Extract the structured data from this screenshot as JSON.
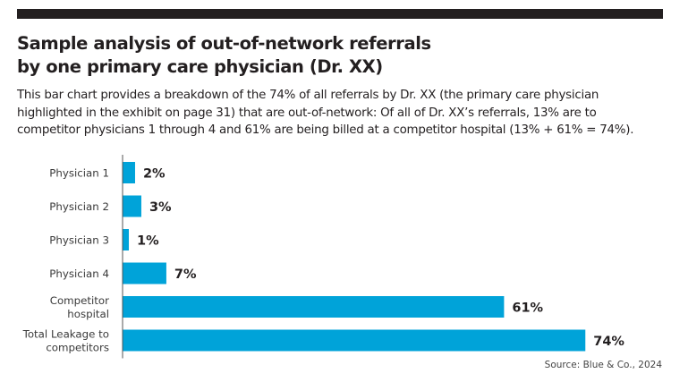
{
  "header": {
    "title_lines": [
      "Sample analysis of out-of-network referrals",
      "by one primary care physician (Dr. XX)"
    ],
    "description_lines": [
      "This bar chart  provides a breakdown of the 74% of all referrals by Dr. XX (the primary care physician",
      "highlighted in the exhibit on page 31) that are out-of-network:  Of all of Dr. XX’s referrals, 13% are to",
      "competitor physicians 1 through 4 and 61% are being billed at a competitor hospital (13% + 61% = 74%)."
    ]
  },
  "chart_data": {
    "type": "bar",
    "orientation": "horizontal",
    "title": "Sample analysis of out-of-network referrals by one primary care physician (Dr. XX)",
    "xlabel": "",
    "ylabel": "",
    "categories": [
      [
        "Physician 1"
      ],
      [
        "Physician 2"
      ],
      [
        "Physician 3"
      ],
      [
        "Physician 4"
      ],
      [
        "Competitor",
        "hospital"
      ],
      [
        "Total Leakage to",
        "competitors"
      ]
    ],
    "values": [
      2,
      3,
      1,
      7,
      61,
      74
    ],
    "value_labels": [
      "2%",
      "3%",
      "1%",
      "7%",
      "61%",
      "74%"
    ],
    "unit": "%",
    "xlim": [
      0,
      100
    ],
    "grid": false,
    "bar_color": "#00a3d9",
    "axis_color": "#555555"
  },
  "footer": {
    "source": "Source: Blue & Co., 2024"
  }
}
